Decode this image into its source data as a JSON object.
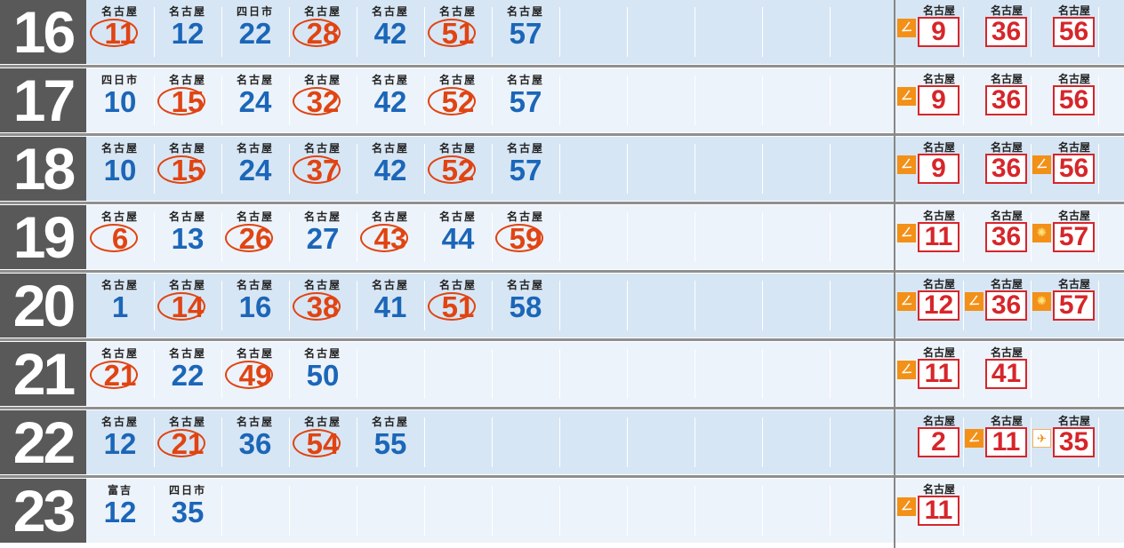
{
  "timetable": {
    "rows": [
      {
        "hour": "16",
        "deps": [
          {
            "dest": "名古屋",
            "min": "11",
            "circled": true
          },
          {
            "dest": "名古屋",
            "min": "12",
            "circled": false
          },
          {
            "dest": "四日市",
            "min": "22",
            "circled": false
          },
          {
            "dest": "名古屋",
            "min": "28",
            "circled": true
          },
          {
            "dest": "名古屋",
            "min": "42",
            "circled": false
          },
          {
            "dest": "名古屋",
            "min": "51",
            "circled": true
          },
          {
            "dest": "名古屋",
            "min": "57",
            "circled": false
          }
        ],
        "right": [
          {
            "dest": "名古屋",
            "min": "9",
            "mark": "orange"
          },
          {
            "dest": "名古屋",
            "min": "36",
            "mark": ""
          },
          {
            "dest": "名古屋",
            "min": "56",
            "mark": ""
          }
        ]
      },
      {
        "hour": "17",
        "deps": [
          {
            "dest": "四日市",
            "min": "10",
            "circled": false
          },
          {
            "dest": "名古屋",
            "min": "15",
            "circled": true
          },
          {
            "dest": "名古屋",
            "min": "24",
            "circled": false
          },
          {
            "dest": "名古屋",
            "min": "32",
            "circled": true
          },
          {
            "dest": "名古屋",
            "min": "42",
            "circled": false
          },
          {
            "dest": "名古屋",
            "min": "52",
            "circled": true
          },
          {
            "dest": "名古屋",
            "min": "57",
            "circled": false
          }
        ],
        "right": [
          {
            "dest": "名古屋",
            "min": "9",
            "mark": "orange"
          },
          {
            "dest": "名古屋",
            "min": "36",
            "mark": ""
          },
          {
            "dest": "名古屋",
            "min": "56",
            "mark": ""
          }
        ]
      },
      {
        "hour": "18",
        "deps": [
          {
            "dest": "名古屋",
            "min": "10",
            "circled": false
          },
          {
            "dest": "名古屋",
            "min": "15",
            "circled": true
          },
          {
            "dest": "名古屋",
            "min": "24",
            "circled": false
          },
          {
            "dest": "名古屋",
            "min": "37",
            "circled": true
          },
          {
            "dest": "名古屋",
            "min": "42",
            "circled": false
          },
          {
            "dest": "名古屋",
            "min": "52",
            "circled": true
          },
          {
            "dest": "名古屋",
            "min": "57",
            "circled": false
          }
        ],
        "right": [
          {
            "dest": "名古屋",
            "min": "9",
            "mark": "orange"
          },
          {
            "dest": "名古屋",
            "min": "36",
            "mark": ""
          },
          {
            "dest": "名古屋",
            "min": "56",
            "mark": "orange"
          }
        ]
      },
      {
        "hour": "19",
        "deps": [
          {
            "dest": "名古屋",
            "min": "6",
            "circled": true
          },
          {
            "dest": "名古屋",
            "min": "13",
            "circled": false
          },
          {
            "dest": "名古屋",
            "min": "26",
            "circled": true
          },
          {
            "dest": "名古屋",
            "min": "27",
            "circled": false
          },
          {
            "dest": "名古屋",
            "min": "43",
            "circled": true
          },
          {
            "dest": "名古屋",
            "min": "44",
            "circled": false
          },
          {
            "dest": "名古屋",
            "min": "59",
            "circled": true
          }
        ],
        "right": [
          {
            "dest": "名古屋",
            "min": "11",
            "mark": "orange"
          },
          {
            "dest": "名古屋",
            "min": "36",
            "mark": ""
          },
          {
            "dest": "名古屋",
            "min": "57",
            "mark": "sun"
          }
        ]
      },
      {
        "hour": "20",
        "deps": [
          {
            "dest": "名古屋",
            "min": "1",
            "circled": false
          },
          {
            "dest": "名古屋",
            "min": "14",
            "circled": true
          },
          {
            "dest": "名古屋",
            "min": "16",
            "circled": false
          },
          {
            "dest": "名古屋",
            "min": "38",
            "circled": true
          },
          {
            "dest": "名古屋",
            "min": "41",
            "circled": false
          },
          {
            "dest": "名古屋",
            "min": "51",
            "circled": true
          },
          {
            "dest": "名古屋",
            "min": "58",
            "circled": false
          }
        ],
        "right": [
          {
            "dest": "名古屋",
            "min": "12",
            "mark": "orange"
          },
          {
            "dest": "名古屋",
            "min": "36",
            "mark": "orange"
          },
          {
            "dest": "名古屋",
            "min": "57",
            "mark": "sun"
          }
        ]
      },
      {
        "hour": "21",
        "deps": [
          {
            "dest": "名古屋",
            "min": "21",
            "circled": true
          },
          {
            "dest": "名古屋",
            "min": "22",
            "circled": false
          },
          {
            "dest": "名古屋",
            "min": "49",
            "circled": true
          },
          {
            "dest": "名古屋",
            "min": "50",
            "circled": false
          }
        ],
        "right": [
          {
            "dest": "名古屋",
            "min": "11",
            "mark": "orange"
          },
          {
            "dest": "名古屋",
            "min": "41",
            "mark": ""
          }
        ]
      },
      {
        "hour": "22",
        "deps": [
          {
            "dest": "名古屋",
            "min": "12",
            "circled": false
          },
          {
            "dest": "名古屋",
            "min": "21",
            "circled": true
          },
          {
            "dest": "名古屋",
            "min": "36",
            "circled": false
          },
          {
            "dest": "名古屋",
            "min": "54",
            "circled": true
          },
          {
            "dest": "名古屋",
            "min": "55",
            "circled": false
          }
        ],
        "right": [
          {
            "dest": "名古屋",
            "min": "2",
            "mark": ""
          },
          {
            "dest": "名古屋",
            "min": "11",
            "mark": "orange"
          },
          {
            "dest": "名古屋",
            "min": "35",
            "mark": "plane"
          }
        ]
      },
      {
        "hour": "23",
        "deps": [
          {
            "dest": "富吉",
            "min": "12",
            "circled": false
          },
          {
            "dest": "四日市",
            "min": "35",
            "circled": false
          }
        ],
        "right": [
          {
            "dest": "名古屋",
            "min": "11",
            "mark": "orange"
          }
        ]
      }
    ]
  },
  "icons": {
    "orange": "limited-express-icon",
    "sun": "sun-icon",
    "plane": "airport-icon"
  },
  "colors": {
    "hour_bg": "#595959",
    "row_dark": "#d7e6f4",
    "row_light": "#edf3fa",
    "minute_blue": "#1b66b8",
    "circled_orange": "#e04412",
    "express_red": "#d6262b",
    "mark_orange": "#f29018"
  }
}
